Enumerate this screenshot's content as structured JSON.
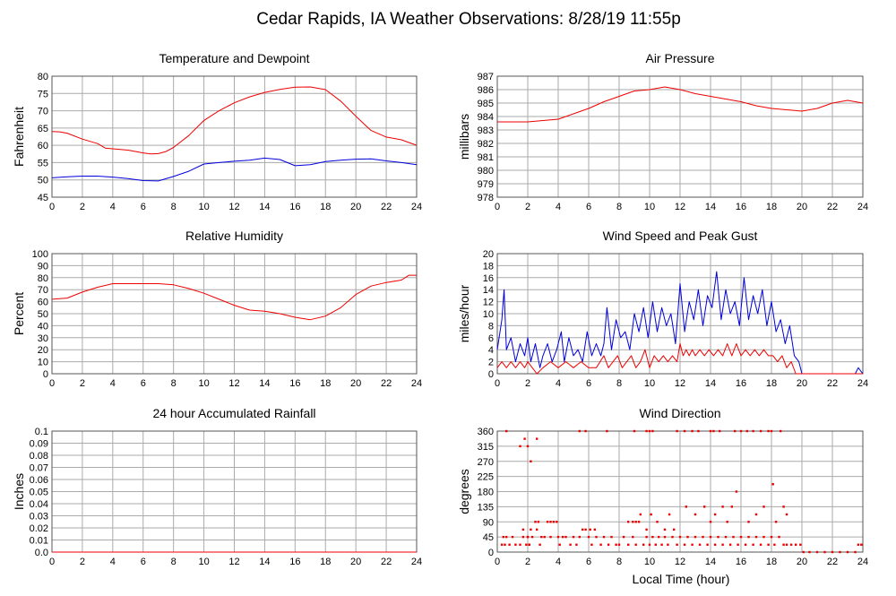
{
  "page": {
    "title": "Cedar Rapids, IA Weather Observations: 8/28/19 11:55p",
    "xlabel": "Local Time (hour)"
  },
  "colors": {
    "red": "#ee0000",
    "blue": "#0000dd",
    "grid": "#aaaaaa",
    "frame": "#555555"
  },
  "chart_data": [
    {
      "id": "temp",
      "type": "line",
      "title": "Temperature and Dewpoint",
      "ylabel": "Fahrenheit",
      "xlim": [
        0,
        24
      ],
      "xticks": [
        0,
        2,
        4,
        6,
        8,
        10,
        12,
        14,
        16,
        18,
        20,
        22,
        24
      ],
      "ylim": [
        45,
        80
      ],
      "yticks": [
        45,
        50,
        55,
        60,
        65,
        70,
        75,
        80
      ],
      "series": [
        {
          "color": "red",
          "x": [
            0,
            0.5,
            1,
            2,
            3,
            3.5,
            4,
            5,
            6,
            6.5,
            7,
            7.5,
            8,
            9,
            10,
            11,
            12,
            13,
            14,
            15,
            16,
            17,
            18,
            19,
            20,
            21,
            22,
            23,
            24
          ],
          "y": [
            64,
            63.9,
            63.5,
            61.8,
            60.5,
            59.2,
            59,
            58.6,
            57.8,
            57.5,
            57.6,
            58.2,
            59.4,
            62.8,
            67.2,
            70,
            72.3,
            74,
            75.3,
            76.2,
            76.8,
            76.9,
            76.1,
            72.8,
            68.4,
            64.3,
            62.4,
            61.6,
            60
          ]
        },
        {
          "color": "blue",
          "x": [
            0,
            1,
            2,
            3,
            4,
            5,
            6,
            7,
            8,
            9,
            10,
            11,
            12,
            13,
            14,
            15,
            16,
            17,
            18,
            19,
            20,
            21,
            22,
            23,
            24
          ],
          "y": [
            50.6,
            50.9,
            51.1,
            51.1,
            50.8,
            50.4,
            49.8,
            49.7,
            51,
            52.5,
            54.6,
            55,
            55.4,
            55.7,
            56.3,
            55.9,
            54.1,
            54.4,
            55.3,
            55.7,
            56,
            56.1,
            55.5,
            55,
            54.4
          ]
        }
      ]
    },
    {
      "id": "pressure",
      "type": "line",
      "title": "Air Pressure",
      "ylabel": "millibars",
      "xlim": [
        0,
        24
      ],
      "xticks": [
        0,
        2,
        4,
        6,
        8,
        10,
        12,
        14,
        16,
        18,
        20,
        22,
        24
      ],
      "ylim": [
        978,
        987
      ],
      "yticks": [
        978,
        979,
        980,
        981,
        982,
        983,
        984,
        985,
        986,
        987
      ],
      "series": [
        {
          "color": "red",
          "x": [
            0,
            1,
            2,
            3,
            4,
            5,
            6,
            7,
            8,
            9,
            10,
            11,
            12,
            13,
            14,
            15,
            16,
            17,
            18,
            19,
            20,
            21,
            22,
            23,
            24
          ],
          "y": [
            983.6,
            983.6,
            983.6,
            983.7,
            983.8,
            984.2,
            984.6,
            985.1,
            985.5,
            985.9,
            986,
            986.2,
            986,
            985.7,
            985.5,
            985.3,
            985.1,
            984.8,
            984.6,
            984.5,
            984.4,
            984.6,
            985,
            985.2,
            985
          ]
        }
      ]
    },
    {
      "id": "humidity",
      "type": "line",
      "title": "Relative Humidity",
      "ylabel": "Percent",
      "xlim": [
        0,
        24
      ],
      "xticks": [
        0,
        2,
        4,
        6,
        8,
        10,
        12,
        14,
        16,
        18,
        20,
        22,
        24
      ],
      "ylim": [
        0,
        100
      ],
      "yticks": [
        0,
        10,
        20,
        30,
        40,
        50,
        60,
        70,
        80,
        90,
        100
      ],
      "series": [
        {
          "color": "red",
          "x": [
            0,
            1,
            2,
            3,
            4,
            5,
            6,
            7,
            8,
            9,
            10,
            11,
            12,
            13,
            14,
            15,
            16,
            17,
            18,
            19,
            20,
            21,
            22,
            23,
            23.5,
            24
          ],
          "y": [
            62,
            63,
            68,
            72,
            75,
            75,
            75,
            75,
            74,
            71,
            67,
            62,
            57,
            53,
            52,
            50,
            47,
            45,
            48,
            55,
            66,
            73,
            76,
            78,
            82,
            82
          ]
        }
      ]
    },
    {
      "id": "wind",
      "type": "line",
      "title": "Wind Speed and Peak Gust",
      "ylabel": "miles/hour",
      "xlim": [
        0,
        24
      ],
      "xticks": [
        0,
        2,
        4,
        6,
        8,
        10,
        12,
        14,
        16,
        18,
        20,
        22,
        24
      ],
      "ylim": [
        0,
        20
      ],
      "yticks": [
        0,
        2,
        4,
        6,
        8,
        10,
        12,
        14,
        16,
        18,
        20
      ],
      "series": [
        {
          "color": "blue",
          "x": [
            0,
            0.3,
            0.45,
            0.6,
            0.9,
            1.2,
            1.5,
            1.8,
            2.0,
            2.2,
            2.5,
            2.8,
            3.0,
            3.3,
            3.6,
            3.9,
            4.2,
            4.4,
            4.7,
            5.0,
            5.3,
            5.6,
            5.9,
            6.2,
            6.5,
            6.8,
            7.0,
            7.2,
            7.5,
            7.8,
            8.1,
            8.4,
            8.7,
            9.0,
            9.3,
            9.6,
            9.9,
            10.2,
            10.5,
            10.8,
            11.1,
            11.4,
            11.7,
            12.0,
            12.3,
            12.6,
            12.9,
            13.2,
            13.5,
            13.8,
            14.1,
            14.4,
            14.7,
            15.0,
            15.3,
            15.6,
            15.9,
            16.2,
            16.5,
            16.8,
            17.1,
            17.4,
            17.7,
            18.0,
            18.3,
            18.6,
            18.9,
            19.2,
            19.5,
            19.8,
            20.0,
            23.0,
            23.5,
            23.7,
            24
          ],
          "y": [
            4,
            9,
            14,
            4,
            6,
            2,
            5,
            3,
            6,
            2,
            5,
            1,
            3,
            5,
            2,
            4,
            7,
            2,
            6,
            3,
            4,
            2,
            7,
            3,
            5,
            3,
            5,
            11,
            4,
            9,
            6,
            7,
            4,
            10,
            7,
            11,
            6,
            12,
            7,
            11,
            8,
            10,
            5,
            15,
            7,
            12,
            9,
            14,
            8,
            13,
            11,
            17,
            9,
            14,
            10,
            12,
            8,
            16,
            9,
            13,
            10,
            14,
            8,
            12,
            7,
            9,
            5,
            8,
            3,
            2,
            0,
            0,
            0,
            1,
            0
          ]
        },
        {
          "color": "red",
          "x": [
            0,
            0.3,
            0.6,
            0.9,
            1.2,
            1.5,
            1.8,
            2.0,
            2.3,
            2.6,
            3.0,
            3.5,
            4.0,
            4.5,
            5.0,
            5.5,
            6.0,
            6.5,
            7.0,
            7.3,
            7.6,
            7.9,
            8.2,
            8.5,
            8.8,
            9.1,
            9.4,
            9.7,
            10.0,
            10.3,
            10.6,
            10.9,
            11.2,
            11.5,
            11.8,
            12.0,
            12.2,
            12.4,
            12.6,
            12.8,
            13.0,
            13.3,
            13.6,
            13.9,
            14.2,
            14.5,
            14.8,
            15.1,
            15.4,
            15.7,
            16.0,
            16.3,
            16.6,
            16.9,
            17.2,
            17.5,
            17.8,
            18.1,
            18.4,
            18.7,
            19.0,
            19.3,
            19.6,
            20.0,
            24
          ],
          "y": [
            1,
            2,
            1,
            2,
            1,
            2,
            1,
            2,
            1,
            0,
            1,
            2,
            1,
            2,
            1,
            2,
            1,
            1,
            3,
            1,
            2,
            3,
            1,
            2,
            3,
            1,
            2,
            4,
            1,
            3,
            2,
            3,
            2,
            3,
            2,
            5,
            3,
            4,
            3,
            4,
            3,
            4,
            3,
            4,
            3,
            4,
            3,
            5,
            3,
            5,
            3,
            4,
            3,
            4,
            3,
            4,
            3,
            3,
            2,
            3,
            1,
            2,
            0,
            0,
            0
          ]
        }
      ]
    },
    {
      "id": "rain",
      "type": "line",
      "title": "24 hour Accumulated Rainfall",
      "ylabel": "Inches",
      "xlim": [
        0,
        24
      ],
      "xticks": [
        0,
        2,
        4,
        6,
        8,
        10,
        12,
        14,
        16,
        18,
        20,
        22,
        24
      ],
      "ylim": [
        0,
        0.1
      ],
      "yticks": [
        "0.0",
        "0.01",
        "0.02",
        "0.03",
        "0.04",
        "0.05",
        "0.06",
        "0.07",
        "0.08",
        "0.09",
        "0.1"
      ],
      "series": [
        {
          "color": "red",
          "x": [
            0,
            24
          ],
          "y": [
            0,
            0
          ]
        }
      ]
    },
    {
      "id": "direction",
      "type": "scatter",
      "title": "Wind Direction",
      "ylabel": "degrees",
      "xlim": [
        0,
        24
      ],
      "xticks": [
        0,
        2,
        4,
        6,
        8,
        10,
        12,
        14,
        16,
        18,
        20,
        22,
        24
      ],
      "ylim": [
        0,
        360
      ],
      "yticks": [
        0,
        45,
        90,
        135,
        180,
        225,
        270,
        315,
        360
      ],
      "series": [
        {
          "color": "red",
          "x": [
            0.3,
            0.4,
            0.5,
            0.6,
            0.8,
            1.0,
            1.2,
            1.5,
            1.7,
            1.9,
            2.0,
            2.1,
            2.2,
            2.3,
            2.5,
            2.7,
            2.9,
            3.1,
            3.3,
            3.5,
            3.7,
            3.9,
            4.1,
            4.3,
            4.5,
            4.8,
            5.0,
            5.2,
            5.4,
            5.6,
            5.8,
            6.0,
            6.2,
            6.5,
            6.8,
            7.0,
            7.3,
            7.5,
            7.8,
            8.0,
            8.3,
            8.6,
            8.9,
            9.1,
            9.3,
            9.6,
            9.8,
            10.0,
            10.2,
            10.4,
            10.6,
            10.8,
            11.0,
            11.2,
            11.5,
            11.8,
            12.0,
            12.3,
            12.5,
            12.8,
            13.0,
            13.3,
            13.5,
            13.8,
            14.0,
            14.3,
            14.5,
            14.8,
            15.0,
            15.3,
            15.5,
            15.8,
            16.0,
            16.3,
            16.5,
            16.8,
            17.0,
            17.3,
            17.5,
            17.8,
            18.0,
            18.2,
            18.5,
            18.8,
            19.0,
            19.3,
            19.6,
            19.9,
            20.1,
            20.5,
            21,
            21.5,
            22,
            22.5,
            23,
            23.5,
            23.7,
            23.9,
            0.6,
            1.5,
            1.8,
            2.0,
            2.2,
            2.6,
            5.4,
            5.8,
            7.2,
            9.0,
            9.8,
            10.0,
            10.2,
            11.8,
            12.3,
            12.8,
            13.2,
            14.0,
            14.2,
            14.6,
            15.6,
            16.0,
            16.4,
            16.8,
            17.3,
            17.8,
            18.0,
            18.6,
            1.7,
            2.0,
            2.1,
            2.6,
            2.8,
            3.5,
            4.0,
            6.1,
            6.4,
            8.6,
            8.9,
            9.1,
            9.4,
            9.8,
            10.1,
            10.5,
            11.0,
            11.3,
            11.6,
            12.4,
            13.0,
            13.6,
            14.0,
            14.3,
            14.8,
            15.1,
            15.4,
            15.7,
            16.5,
            17.0,
            17.5,
            18.1,
            18.3,
            18.8,
            19.0
          ],
          "y": [
            22,
            45,
            22,
            45,
            22,
            45,
            22,
            22,
            45,
            22,
            45,
            22,
            67,
            45,
            90,
            90,
            45,
            45,
            90,
            90,
            90,
            90,
            22,
            45,
            45,
            22,
            45,
            22,
            45,
            67,
            67,
            45,
            22,
            45,
            22,
            45,
            22,
            45,
            22,
            22,
            45,
            22,
            45,
            22,
            90,
            22,
            45,
            22,
            45,
            22,
            45,
            22,
            45,
            22,
            45,
            22,
            45,
            22,
            45,
            22,
            45,
            22,
            45,
            22,
            45,
            22,
            45,
            22,
            45,
            22,
            45,
            22,
            45,
            22,
            45,
            22,
            45,
            22,
            45,
            22,
            45,
            22,
            45,
            22,
            22,
            22,
            22,
            22,
            0,
            0,
            0,
            0,
            0,
            0,
            0,
            0,
            22,
            22,
            360,
            315,
            337,
            315,
            270,
            337,
            360,
            360,
            360,
            360,
            360,
            360,
            360,
            360,
            360,
            360,
            360,
            360,
            360,
            360,
            360,
            360,
            360,
            360,
            360,
            360,
            360,
            360,
            67,
            45,
            22,
            67,
            22,
            45,
            45,
            67,
            67,
            90,
            90,
            90,
            112,
            67,
            112,
            90,
            67,
            112,
            67,
            135,
            112,
            135,
            90,
            112,
            135,
            90,
            135,
            180,
            90,
            112,
            135,
            202,
            90,
            135,
            112
          ]
        }
      ]
    }
  ]
}
